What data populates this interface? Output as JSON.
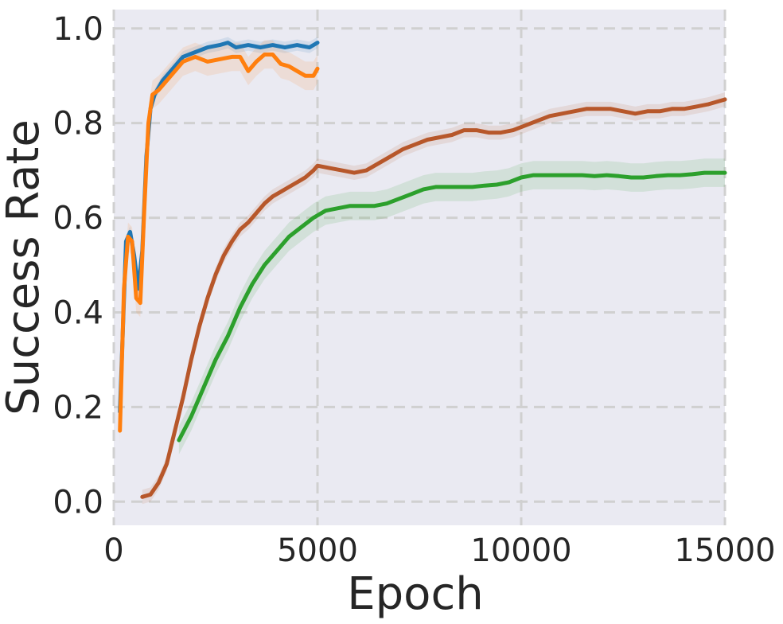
{
  "chart_data": {
    "type": "line",
    "title": "",
    "xlabel": "Epoch",
    "ylabel": "Success Rate",
    "xlim": [
      0,
      15000
    ],
    "ylim": [
      -0.05,
      1.04
    ],
    "xticks": [
      0,
      5000,
      10000,
      15000
    ],
    "xtick_labels": [
      "0",
      "5000",
      "10000",
      "15000"
    ],
    "yticks": [
      0.0,
      0.2,
      0.4,
      0.6,
      0.8,
      1.0
    ],
    "ytick_labels": [
      "0.0",
      "0.2",
      "0.4",
      "0.6",
      "0.8",
      "1.0"
    ],
    "grid": true,
    "legend": "none",
    "background_color": "#eaeaf2",
    "grid_color": "#d0d0d0",
    "series": [
      {
        "color": "#1f77b4",
        "x": [
          150,
          300,
          400,
          500,
          600,
          700,
          800,
          900,
          1000,
          1200,
          1500,
          1700,
          2000,
          2300,
          2600,
          2800,
          3000,
          3300,
          3600,
          3900,
          4200,
          4500,
          4800,
          5000
        ],
        "y": [
          0.19,
          0.55,
          0.57,
          0.52,
          0.45,
          0.53,
          0.73,
          0.83,
          0.86,
          0.89,
          0.92,
          0.94,
          0.95,
          0.96,
          0.965,
          0.97,
          0.96,
          0.965,
          0.96,
          0.965,
          0.96,
          0.965,
          0.96,
          0.97
        ],
        "band": 0.012
      },
      {
        "color": "#ff7f0e",
        "x": [
          150,
          250,
          350,
          450,
          550,
          650,
          750,
          850,
          950,
          1100,
          1400,
          1700,
          2000,
          2300,
          2600,
          2900,
          3100,
          3300,
          3500,
          3700,
          3900,
          4100,
          4300,
          4500,
          4700,
          4900,
          5000
        ],
        "y": [
          0.15,
          0.45,
          0.56,
          0.55,
          0.43,
          0.42,
          0.62,
          0.8,
          0.86,
          0.87,
          0.9,
          0.93,
          0.94,
          0.93,
          0.935,
          0.94,
          0.94,
          0.91,
          0.93,
          0.945,
          0.945,
          0.925,
          0.92,
          0.91,
          0.9,
          0.9,
          0.915
        ],
        "band": 0.03
      },
      {
        "color": "#b7572a",
        "x": [
          700,
          900,
          1100,
          1300,
          1500,
          1700,
          1900,
          2100,
          2300,
          2500,
          2700,
          2900,
          3100,
          3300,
          3500,
          3700,
          3900,
          4100,
          4300,
          4500,
          4700,
          4900,
          5000,
          5300,
          5600,
          5900,
          6200,
          6500,
          6800,
          7100,
          7400,
          7700,
          8000,
          8300,
          8600,
          8900,
          9200,
          9500,
          9800,
          10100,
          10400,
          10700,
          11000,
          11300,
          11600,
          11900,
          12200,
          12500,
          12800,
          13100,
          13400,
          13700,
          14000,
          14300,
          14600,
          15000
        ],
        "y": [
          0.01,
          0.015,
          0.04,
          0.08,
          0.15,
          0.22,
          0.3,
          0.37,
          0.43,
          0.48,
          0.52,
          0.55,
          0.575,
          0.59,
          0.61,
          0.63,
          0.645,
          0.655,
          0.665,
          0.675,
          0.685,
          0.7,
          0.71,
          0.705,
          0.7,
          0.695,
          0.7,
          0.715,
          0.73,
          0.745,
          0.755,
          0.765,
          0.77,
          0.775,
          0.785,
          0.785,
          0.78,
          0.78,
          0.785,
          0.795,
          0.805,
          0.815,
          0.82,
          0.825,
          0.83,
          0.83,
          0.83,
          0.825,
          0.82,
          0.825,
          0.825,
          0.83,
          0.83,
          0.835,
          0.84,
          0.85
        ],
        "band": 0.015
      },
      {
        "color": "#2ca02c",
        "x": [
          1600,
          1900,
          2200,
          2500,
          2800,
          3100,
          3400,
          3700,
          4000,
          4300,
          4600,
          4900,
          5200,
          5500,
          5800,
          6100,
          6400,
          6700,
          7000,
          7300,
          7600,
          7900,
          8200,
          8500,
          8800,
          9100,
          9400,
          9700,
          10000,
          10300,
          10600,
          10900,
          11200,
          11500,
          11800,
          12100,
          12400,
          12700,
          13000,
          13300,
          13600,
          13900,
          14200,
          14500,
          14800,
          15000
        ],
        "y": [
          0.13,
          0.18,
          0.24,
          0.3,
          0.35,
          0.41,
          0.46,
          0.5,
          0.53,
          0.56,
          0.58,
          0.6,
          0.615,
          0.62,
          0.625,
          0.625,
          0.625,
          0.63,
          0.64,
          0.65,
          0.66,
          0.665,
          0.665,
          0.665,
          0.665,
          0.668,
          0.67,
          0.675,
          0.685,
          0.69,
          0.69,
          0.69,
          0.69,
          0.69,
          0.688,
          0.69,
          0.688,
          0.685,
          0.685,
          0.688,
          0.69,
          0.69,
          0.692,
          0.695,
          0.695,
          0.695
        ],
        "band": 0.03
      }
    ]
  }
}
